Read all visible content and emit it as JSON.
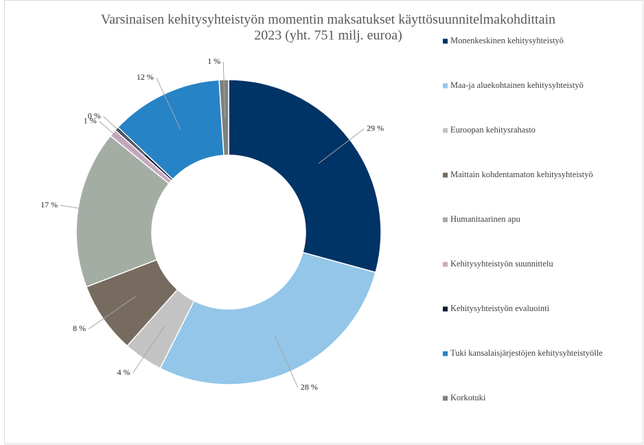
{
  "chart_data": {
    "type": "donut",
    "title": [
      "Varsinaisen kehitysyhteistyön momentin maksatukset käyttösuunnitelmakohdittain",
      "2023 (yht. 751 milj. euroa)"
    ],
    "categories": [
      "Monenkeskinen kehitysyhteistyö",
      "Maa-ja aluekohtainen kehitysyhteistyö",
      "Euroopan kehitysrahasto",
      "Maittain kohdentamaton kehitysyhteistyö",
      "Humanitaarinen apu",
      "Kehitysyhteistyön suunnittelu",
      "Kehitysyhteistyön evaluointi",
      "Tuki kansalaisjärjestöjen kehitysyhteistyölle",
      "Korkotuki"
    ],
    "values": [
      29.4,
      28.3,
      4.2,
      7.6,
      16.8,
      0.8,
      0.4,
      12.0,
      1.0
    ],
    "value_labels": [
      "29 %",
      "28 %",
      "4 %",
      "8 %",
      "17 %",
      "1 %",
      "0 %",
      "12 %",
      "1 %"
    ],
    "colors": [
      "#003366",
      "#93c6e8",
      "#c3c3c3",
      "#776b5f",
      "#a3ada3",
      "#c9a8c0",
      "#0d1b33",
      "#2683c6",
      "#808080"
    ],
    "legend": "right"
  }
}
